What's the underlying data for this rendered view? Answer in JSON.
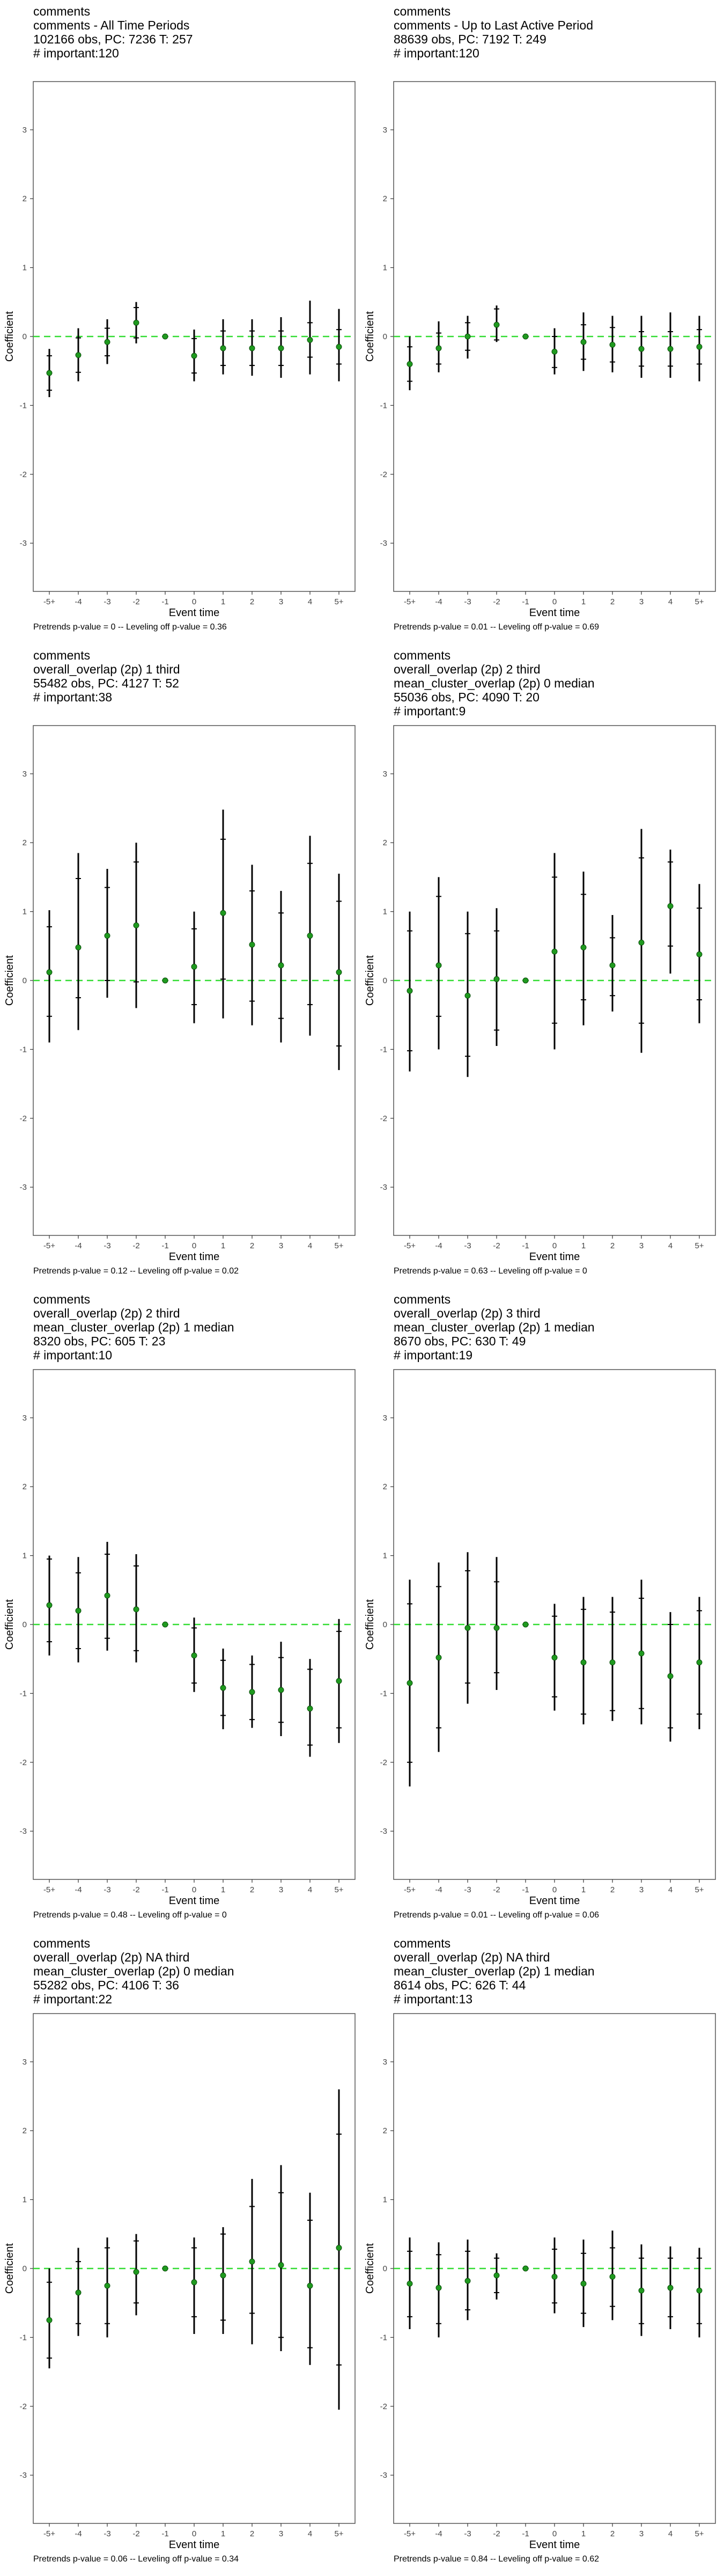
{
  "chart_data": [
    {
      "type": "scatter",
      "title_lines": [
        "comments",
        "comments - All Time Periods",
        "102166 obs, PC: 7236 T: 257",
        "# important:120"
      ],
      "xlabel": "Event time",
      "ylabel": "Coefficient",
      "categories": [
        "-5+",
        "-4",
        "-3",
        "-2",
        "-1",
        "0",
        "1",
        "2",
        "3",
        "4",
        "5+"
      ],
      "ylim": [
        -3.7,
        3.7
      ],
      "yticks": [
        -3,
        -2,
        -1,
        0,
        1,
        2,
        3
      ],
      "reference_line": 0,
      "values": [
        -0.53,
        -0.27,
        -0.08,
        0.2,
        0.0,
        -0.28,
        -0.17,
        -0.17,
        -0.17,
        -0.05,
        -0.15
      ],
      "ci_inner": [
        [
          -0.78,
          -0.28
        ],
        [
          -0.52,
          -0.02
        ],
        [
          -0.28,
          0.12
        ],
        [
          -0.02,
          0.42
        ],
        [
          0.0,
          0.0
        ],
        [
          -0.53,
          -0.03
        ],
        [
          -0.42,
          0.08
        ],
        [
          -0.42,
          0.08
        ],
        [
          -0.42,
          0.08
        ],
        [
          -0.3,
          0.2
        ],
        [
          -0.4,
          0.1
        ]
      ],
      "ci_outer": [
        [
          -0.88,
          -0.18
        ],
        [
          -0.65,
          0.12
        ],
        [
          -0.4,
          0.25
        ],
        [
          -0.1,
          0.5
        ],
        [
          0.0,
          0.0
        ],
        [
          -0.65,
          0.1
        ],
        [
          -0.55,
          0.25
        ],
        [
          -0.57,
          0.25
        ],
        [
          -0.6,
          0.28
        ],
        [
          -0.55,
          0.52
        ],
        [
          -0.65,
          0.4
        ]
      ],
      "footnote": "Pretrends p-value = 0 -- Leveling off p-value = 0.36"
    },
    {
      "type": "scatter",
      "title_lines": [
        "comments",
        "comments - Up to Last Active Period",
        "88639 obs, PC: 7192 T: 249",
        "# important:120"
      ],
      "xlabel": "Event time",
      "ylabel": "Coefficient",
      "categories": [
        "-5+",
        "-4",
        "-3",
        "-2",
        "-1",
        "0",
        "1",
        "2",
        "3",
        "4",
        "5+"
      ],
      "ylim": [
        -3.7,
        3.7
      ],
      "yticks": [
        -3,
        -2,
        -1,
        0,
        1,
        2,
        3
      ],
      "reference_line": 0,
      "values": [
        -0.4,
        -0.17,
        0.0,
        0.17,
        0.0,
        -0.22,
        -0.08,
        -0.12,
        -0.18,
        -0.18,
        -0.15
      ],
      "ci_inner": [
        [
          -0.65,
          -0.15
        ],
        [
          -0.4,
          0.05
        ],
        [
          -0.2,
          0.2
        ],
        [
          -0.05,
          0.4
        ],
        [
          0.0,
          0.0
        ],
        [
          -0.45,
          0.0
        ],
        [
          -0.33,
          0.17
        ],
        [
          -0.37,
          0.13
        ],
        [
          -0.43,
          0.07
        ],
        [
          -0.43,
          0.07
        ],
        [
          -0.4,
          0.1
        ]
      ],
      "ci_outer": [
        [
          -0.78,
          0.0
        ],
        [
          -0.52,
          0.22
        ],
        [
          -0.32,
          0.3
        ],
        [
          -0.08,
          0.45
        ],
        [
          0.0,
          0.0
        ],
        [
          -0.55,
          0.12
        ],
        [
          -0.5,
          0.35
        ],
        [
          -0.52,
          0.3
        ],
        [
          -0.6,
          0.3
        ],
        [
          -0.6,
          0.35
        ],
        [
          -0.65,
          0.3
        ]
      ],
      "footnote": "Pretrends p-value = 0.01 -- Leveling off p-value = 0.69"
    },
    {
      "type": "scatter",
      "title_lines": [
        "comments",
        "overall_overlap (2p) 1 third",
        "55482 obs, PC: 4127 T: 52",
        "# important:38"
      ],
      "xlabel": "Event time",
      "ylabel": "Coefficient",
      "categories": [
        "-5+",
        "-4",
        "-3",
        "-2",
        "-1",
        "0",
        "1",
        "2",
        "3",
        "4",
        "5+"
      ],
      "ylim": [
        -3.7,
        3.7
      ],
      "yticks": [
        -3,
        -2,
        -1,
        0,
        1,
        2,
        3
      ],
      "reference_line": 0,
      "values": [
        0.12,
        0.48,
        0.65,
        0.8,
        0.0,
        0.2,
        0.98,
        0.52,
        0.22,
        0.65,
        0.12
      ],
      "ci_inner": [
        [
          -0.52,
          0.78
        ],
        [
          -0.25,
          1.48
        ],
        [
          0.0,
          1.35
        ],
        [
          -0.02,
          1.72
        ],
        [
          0.0,
          0.0
        ],
        [
          -0.35,
          0.75
        ],
        [
          0.02,
          2.05
        ],
        [
          -0.3,
          1.3
        ],
        [
          -0.55,
          0.98
        ],
        [
          -0.35,
          1.7
        ],
        [
          -0.95,
          1.15
        ]
      ],
      "ci_outer": [
        [
          -0.9,
          1.02
        ],
        [
          -0.72,
          1.85
        ],
        [
          -0.25,
          1.62
        ],
        [
          -0.4,
          2.0
        ],
        [
          0.0,
          0.0
        ],
        [
          -0.62,
          1.0
        ],
        [
          -0.55,
          2.48
        ],
        [
          -0.65,
          1.68
        ],
        [
          -0.9,
          1.3
        ],
        [
          -0.8,
          2.1
        ],
        [
          -1.3,
          1.55
        ]
      ],
      "footnote": "Pretrends p-value = 0.12 -- Leveling off p-value = 0.02"
    },
    {
      "type": "scatter",
      "title_lines": [
        "comments",
        "overall_overlap (2p) 2 third",
        "mean_cluster_overlap (2p) 0 median",
        "55036 obs, PC: 4090 T: 20",
        "# important:9"
      ],
      "xlabel": "Event time",
      "ylabel": "Coefficient",
      "categories": [
        "-5+",
        "-4",
        "-3",
        "-2",
        "-1",
        "0",
        "1",
        "2",
        "3",
        "4",
        "5+"
      ],
      "ylim": [
        -3.7,
        3.7
      ],
      "yticks": [
        -3,
        -2,
        -1,
        0,
        1,
        2,
        3
      ],
      "reference_line": 0,
      "values": [
        -0.15,
        0.22,
        -0.22,
        0.02,
        0.0,
        0.42,
        0.48,
        0.22,
        0.55,
        1.08,
        0.38
      ],
      "ci_inner": [
        [
          -1.02,
          0.72
        ],
        [
          -0.52,
          1.22
        ],
        [
          -1.1,
          0.68
        ],
        [
          -0.72,
          0.72
        ],
        [
          0.0,
          0.0
        ],
        [
          -0.62,
          1.5
        ],
        [
          -0.28,
          1.25
        ],
        [
          -0.22,
          0.62
        ],
        [
          -0.62,
          1.78
        ],
        [
          0.5,
          1.72
        ],
        [
          -0.28,
          1.05
        ]
      ],
      "ci_outer": [
        [
          -1.32,
          1.0
        ],
        [
          -1.0,
          1.5
        ],
        [
          -1.4,
          1.0
        ],
        [
          -0.95,
          1.05
        ],
        [
          0.0,
          0.0
        ],
        [
          -1.0,
          1.85
        ],
        [
          -0.65,
          1.58
        ],
        [
          -0.45,
          0.95
        ],
        [
          -1.05,
          2.2
        ],
        [
          0.1,
          1.9
        ],
        [
          -0.62,
          1.4
        ]
      ],
      "footnote": "Pretrends p-value = 0.63 -- Leveling off p-value = 0"
    },
    {
      "type": "scatter",
      "title_lines": [
        "comments",
        "overall_overlap (2p) 2 third",
        "mean_cluster_overlap (2p) 1 median",
        "8320 obs, PC: 605 T: 23",
        "# important:10"
      ],
      "xlabel": "Event time",
      "ylabel": "Coefficient",
      "categories": [
        "-5+",
        "-4",
        "-3",
        "-2",
        "-1",
        "0",
        "1",
        "2",
        "3",
        "4",
        "5+"
      ],
      "ylim": [
        -3.7,
        3.7
      ],
      "yticks": [
        -3,
        -2,
        -1,
        0,
        1,
        2,
        3
      ],
      "reference_line": 0,
      "values": [
        0.28,
        0.2,
        0.42,
        0.22,
        0.0,
        -0.45,
        -0.92,
        -0.98,
        -0.95,
        -1.22,
        -0.82
      ],
      "ci_inner": [
        [
          -0.25,
          0.95
        ],
        [
          -0.35,
          0.75
        ],
        [
          -0.2,
          1.02
        ],
        [
          -0.38,
          0.85
        ],
        [
          0.0,
          0.0
        ],
        [
          -0.85,
          -0.05
        ],
        [
          -1.32,
          -0.52
        ],
        [
          -1.38,
          -0.58
        ],
        [
          -1.42,
          -0.48
        ],
        [
          -1.75,
          -0.65
        ],
        [
          -1.5,
          -0.1
        ]
      ],
      "ci_outer": [
        [
          -0.45,
          1.0
        ],
        [
          -0.55,
          0.98
        ],
        [
          -0.38,
          1.2
        ],
        [
          -0.55,
          1.02
        ],
        [
          0.0,
          0.0
        ],
        [
          -0.98,
          0.1
        ],
        [
          -1.52,
          -0.35
        ],
        [
          -1.5,
          -0.45
        ],
        [
          -1.62,
          -0.25
        ],
        [
          -1.92,
          -0.5
        ],
        [
          -1.72,
          0.08
        ]
      ],
      "footnote": "Pretrends p-value = 0.48 -- Leveling off p-value = 0"
    },
    {
      "type": "scatter",
      "title_lines": [
        "comments",
        "overall_overlap (2p) 3 third",
        "mean_cluster_overlap (2p) 1 median",
        "8670 obs, PC: 630 T: 49",
        "# important:19"
      ],
      "xlabel": "Event time",
      "ylabel": "Coefficient",
      "categories": [
        "-5+",
        "-4",
        "-3",
        "-2",
        "-1",
        "0",
        "1",
        "2",
        "3",
        "4",
        "5+"
      ],
      "ylim": [
        -3.7,
        3.7
      ],
      "yticks": [
        -3,
        -2,
        -1,
        0,
        1,
        2,
        3
      ],
      "reference_line": 0,
      "values": [
        -0.85,
        -0.48,
        -0.05,
        -0.05,
        0.0,
        -0.48,
        -0.55,
        -0.55,
        -0.42,
        -0.75,
        -0.55
      ],
      "ci_inner": [
        [
          -2.0,
          0.3
        ],
        [
          -1.5,
          0.55
        ],
        [
          -0.85,
          0.78
        ],
        [
          -0.7,
          0.62
        ],
        [
          0.0,
          0.0
        ],
        [
          -1.05,
          0.12
        ],
        [
          -1.3,
          0.22
        ],
        [
          -1.25,
          0.18
        ],
        [
          -1.22,
          0.38
        ],
        [
          -1.5,
          0.0
        ],
        [
          -1.3,
          0.2
        ]
      ],
      "ci_outer": [
        [
          -2.35,
          0.65
        ],
        [
          -1.85,
          0.9
        ],
        [
          -1.15,
          1.05
        ],
        [
          -0.95,
          0.98
        ],
        [
          0.0,
          0.0
        ],
        [
          -1.25,
          0.3
        ],
        [
          -1.45,
          0.4
        ],
        [
          -1.4,
          0.4
        ],
        [
          -1.45,
          0.65
        ],
        [
          -1.7,
          0.18
        ],
        [
          -1.52,
          0.4
        ]
      ],
      "footnote": "Pretrends p-value = 0.01 -- Leveling off p-value = 0.06"
    },
    {
      "type": "scatter",
      "title_lines": [
        "comments",
        "overall_overlap (2p) NA third",
        "mean_cluster_overlap (2p) 0 median",
        "55282 obs, PC: 4106 T: 36",
        "# important:22"
      ],
      "xlabel": "Event time",
      "ylabel": "Coefficient",
      "categories": [
        "-5+",
        "-4",
        "-3",
        "-2",
        "-1",
        "0",
        "1",
        "2",
        "3",
        "4",
        "5+"
      ],
      "ylim": [
        -3.7,
        3.7
      ],
      "yticks": [
        -3,
        -2,
        -1,
        0,
        1,
        2,
        3
      ],
      "reference_line": 0,
      "values": [
        -0.75,
        -0.35,
        -0.25,
        -0.05,
        0.0,
        -0.2,
        -0.1,
        0.1,
        0.05,
        -0.25,
        0.3
      ],
      "ci_inner": [
        [
          -1.3,
          -0.2
        ],
        [
          -0.8,
          0.1
        ],
        [
          -0.8,
          0.3
        ],
        [
          -0.5,
          0.4
        ],
        [
          0.0,
          0.0
        ],
        [
          -0.7,
          0.3
        ],
        [
          -0.75,
          0.5
        ],
        [
          -0.65,
          0.9
        ],
        [
          -1.0,
          1.1
        ],
        [
          -1.15,
          0.7
        ],
        [
          -1.4,
          1.95
        ]
      ],
      "ci_outer": [
        [
          -1.45,
          0.0
        ],
        [
          -0.98,
          0.3
        ],
        [
          -1.0,
          0.45
        ],
        [
          -0.68,
          0.5
        ],
        [
          0.0,
          0.0
        ],
        [
          -0.95,
          0.45
        ],
        [
          -0.95,
          0.6
        ],
        [
          -1.1,
          1.3
        ],
        [
          -1.2,
          1.5
        ],
        [
          -1.4,
          1.1
        ],
        [
          -2.05,
          2.6
        ]
      ],
      "footnote": "Pretrends p-value = 0.06 -- Leveling off p-value = 0.34"
    },
    {
      "type": "scatter",
      "title_lines": [
        "comments",
        "overall_overlap (2p) NA third",
        "mean_cluster_overlap (2p) 1 median",
        "8614 obs, PC: 626 T: 44",
        "# important:13"
      ],
      "xlabel": "Event time",
      "ylabel": "Coefficient",
      "categories": [
        "-5+",
        "-4",
        "-3",
        "-2",
        "-1",
        "0",
        "1",
        "2",
        "3",
        "4",
        "5+"
      ],
      "ylim": [
        -3.7,
        3.7
      ],
      "yticks": [
        -3,
        -2,
        -1,
        0,
        1,
        2,
        3
      ],
      "reference_line": 0,
      "values": [
        -0.22,
        -0.28,
        -0.18,
        -0.1,
        0.0,
        -0.12,
        -0.22,
        -0.12,
        -0.32,
        -0.28,
        -0.32
      ],
      "ci_inner": [
        [
          -0.7,
          0.25
        ],
        [
          -0.8,
          0.2
        ],
        [
          -0.6,
          0.25
        ],
        [
          -0.35,
          0.15
        ],
        [
          0.0,
          0.0
        ],
        [
          -0.5,
          0.28
        ],
        [
          -0.65,
          0.22
        ],
        [
          -0.55,
          0.3
        ],
        [
          -0.8,
          0.15
        ],
        [
          -0.7,
          0.15
        ],
        [
          -0.8,
          0.15
        ]
      ],
      "ci_outer": [
        [
          -0.88,
          0.45
        ],
        [
          -1.0,
          0.38
        ],
        [
          -0.75,
          0.42
        ],
        [
          -0.45,
          0.22
        ],
        [
          0.0,
          0.0
        ],
        [
          -0.65,
          0.45
        ],
        [
          -0.85,
          0.42
        ],
        [
          -0.75,
          0.55
        ],
        [
          -0.98,
          0.35
        ],
        [
          -0.88,
          0.32
        ],
        [
          -1.0,
          0.3
        ]
      ],
      "footnote": "Pretrends p-value = 0.84 -- Leveling off p-value = 0.62"
    }
  ],
  "colors": {
    "point": "#1f9a1f",
    "reference_line": "#33dd33",
    "bars": "#000000",
    "frame": "#555555"
  }
}
